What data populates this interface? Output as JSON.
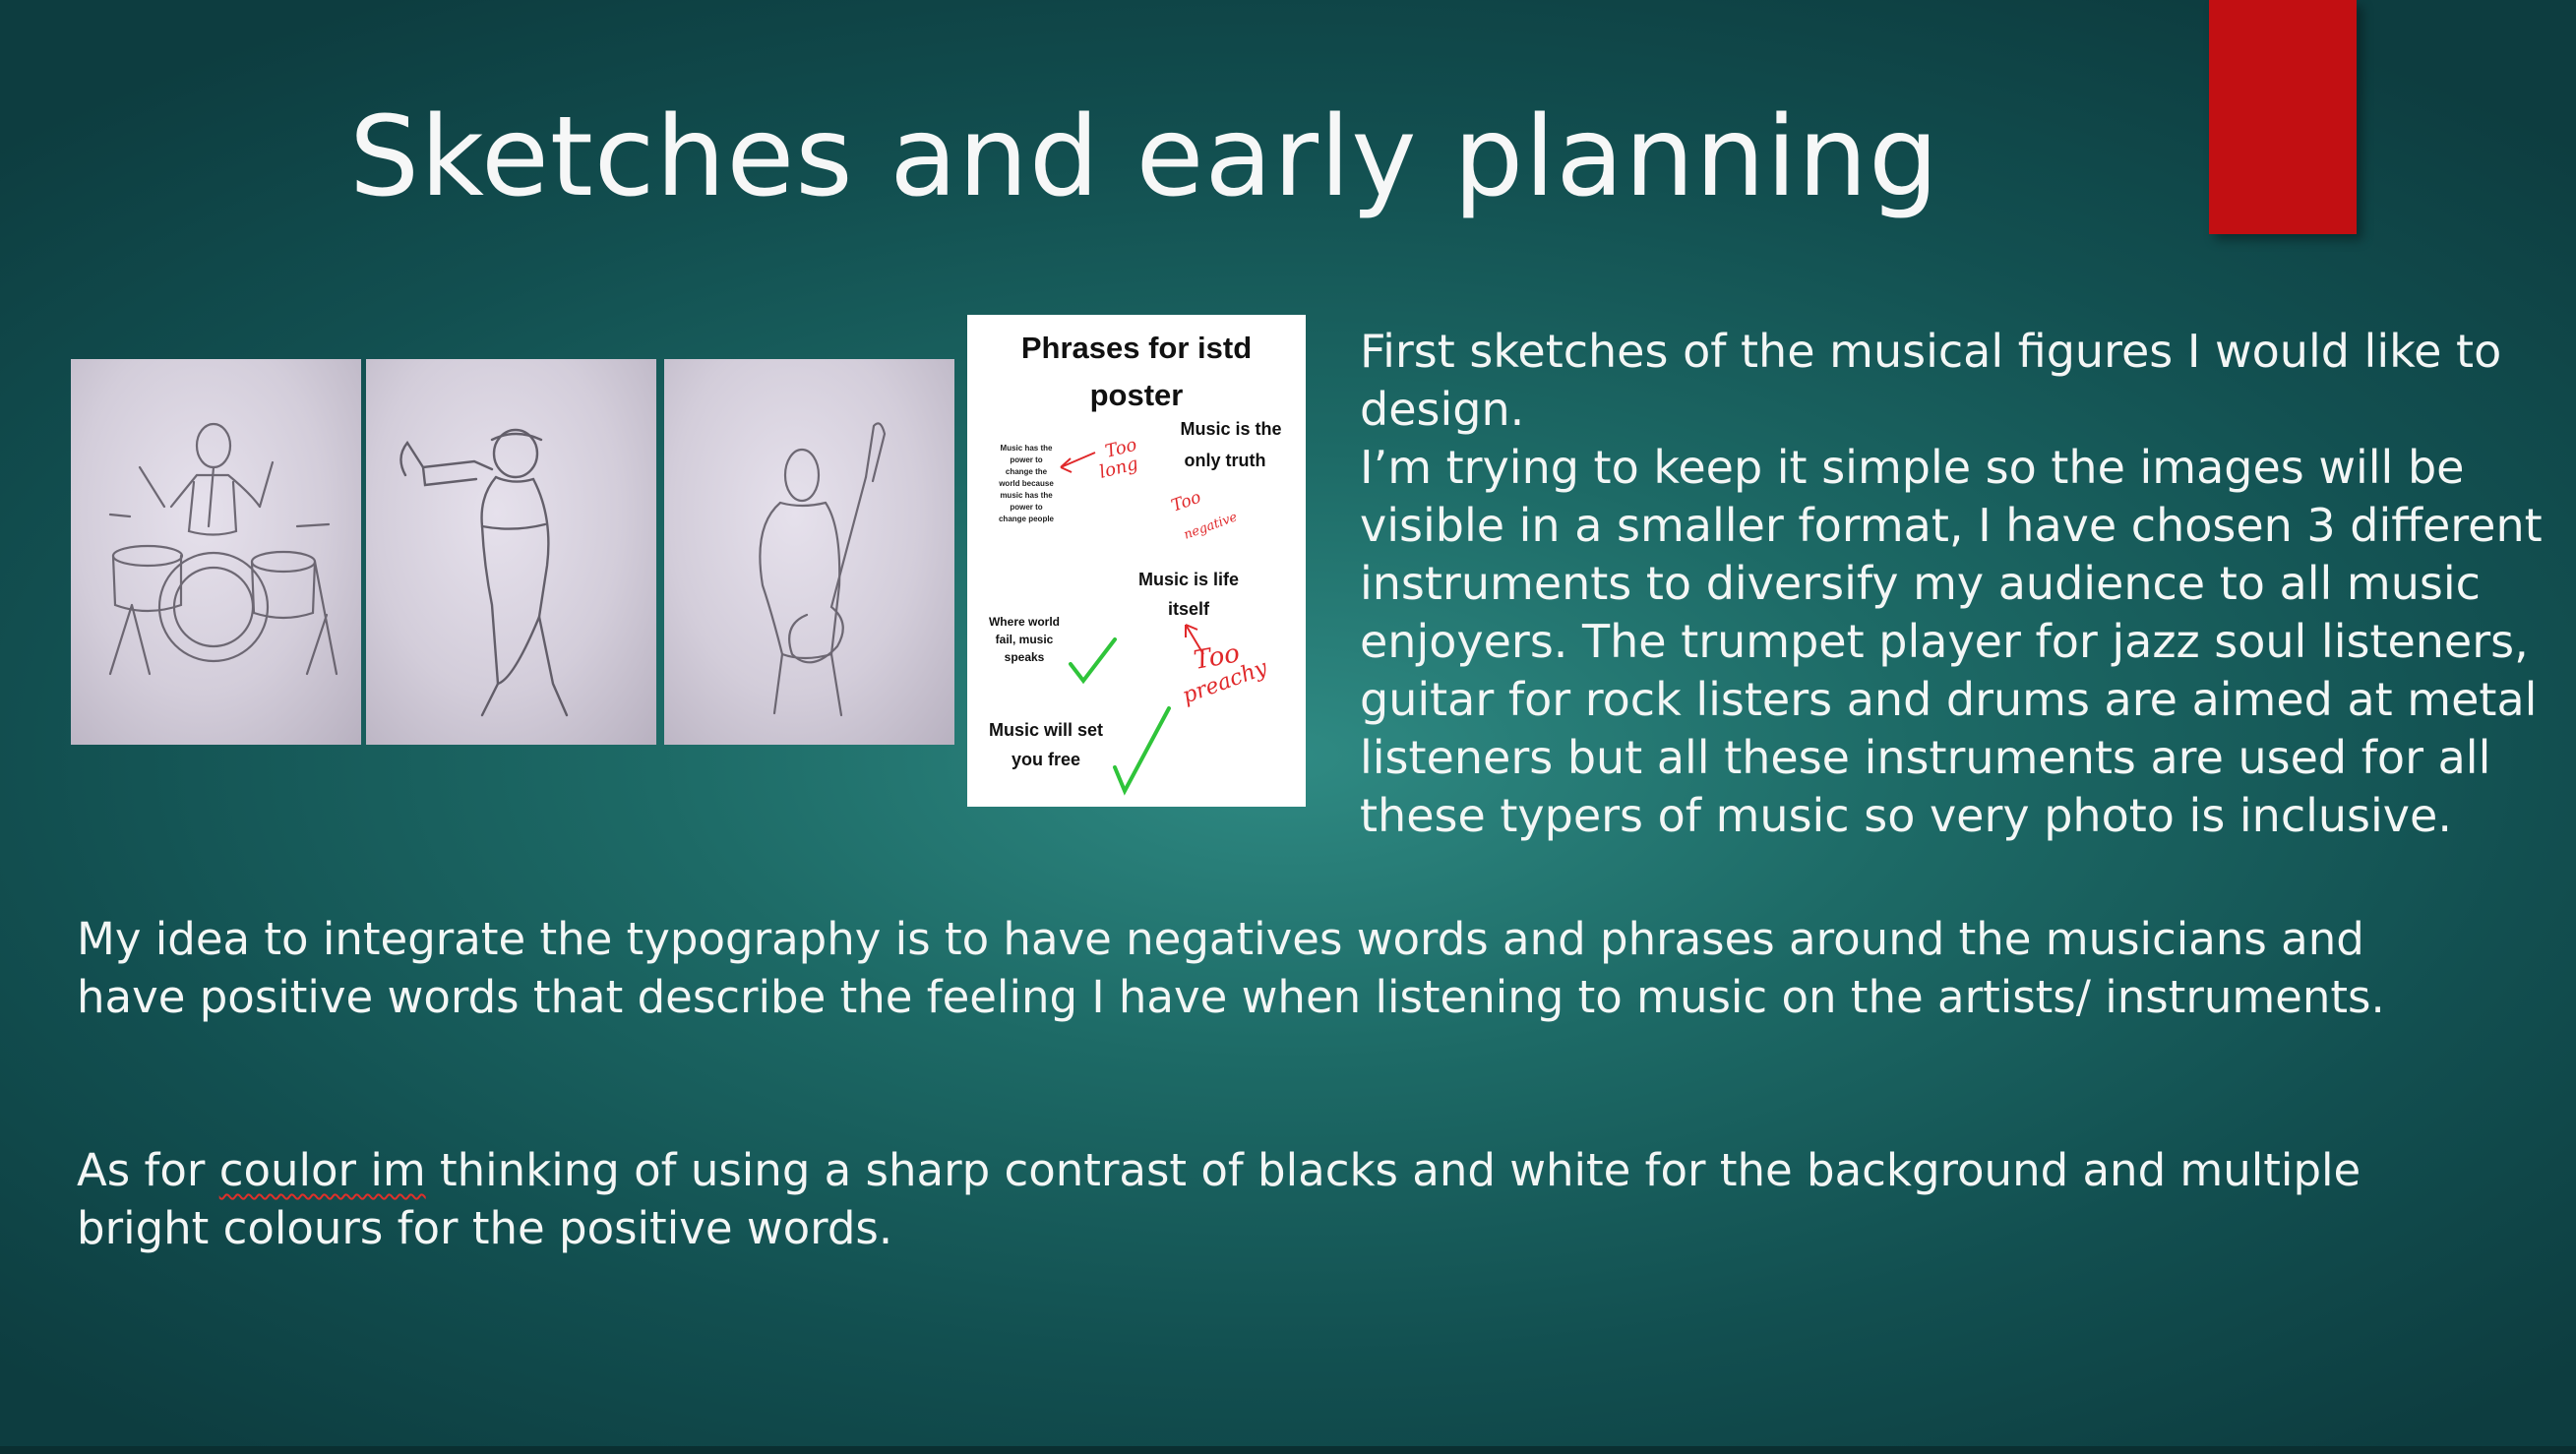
{
  "slide": {
    "title": "Sketches and early planning",
    "accent_color": "#c20f12",
    "background_color": "#1d6a66"
  },
  "sketches": [
    {
      "subject": "drummer"
    },
    {
      "subject": "trumpet player"
    },
    {
      "subject": "guitarist"
    }
  ],
  "note_card": {
    "heading_line1": "Phrases for istd",
    "heading_line2": "poster",
    "phrase_small": [
      "Music has the",
      "power to",
      "change the",
      "world because",
      "music has the",
      "power to",
      "change people"
    ],
    "phrase_truth_1": "Music is the",
    "phrase_truth_2": "only truth",
    "phrase_life_1": "Music is life",
    "phrase_life_2": "itself",
    "phrase_fail_1": "Where world",
    "phrase_fail_2": "fail, music",
    "phrase_fail_3": "speaks",
    "phrase_free_1": "Music will set",
    "phrase_free_2": "you free",
    "annotation_too_long_1": "Too",
    "annotation_too_long_2": "long",
    "annotation_too_negative_1": "Too",
    "annotation_too_negative_2": "negative",
    "annotation_too_preachy_1": "Too",
    "annotation_too_preachy_2": "preachy"
  },
  "description": {
    "line1": "First sketches of the musical figures I would like to design.",
    "line2": "I’m trying to keep it simple so the images will be visible in a smaller format, I have chosen 3 different instruments to diversify my audience to all music enjoyers. The trumpet player for jazz soul listeners, guitar for rock listers and drums are aimed at metal listeners but all these instruments are used for all these typers of music so very photo is inclusive."
  },
  "paragraph1": "My idea to integrate the typography is to have negatives words and phrases around the musicians and have positive words that describe the feeling I have when listening to music on the artists/ instruments.",
  "paragraph2": {
    "before": "As for ",
    "underlined": "coulor im",
    "after": " thinking of using a sharp contrast of blacks and white for the background and multiple bright colours for the positive words."
  }
}
